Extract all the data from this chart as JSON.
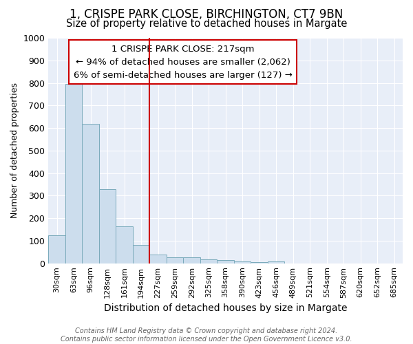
{
  "title": "1, CRISPE PARK CLOSE, BIRCHINGTON, CT7 9BN",
  "subtitle": "Size of property relative to detached houses in Margate",
  "xlabel": "Distribution of detached houses by size in Margate",
  "ylabel": "Number of detached properties",
  "footer_line1": "Contains HM Land Registry data © Crown copyright and database right 2024.",
  "footer_line2": "Contains public sector information licensed under the Open Government Licence v3.0.",
  "categories": [
    "30sqm",
    "63sqm",
    "96sqm",
    "128sqm",
    "161sqm",
    "194sqm",
    "227sqm",
    "259sqm",
    "292sqm",
    "325sqm",
    "358sqm",
    "390sqm",
    "423sqm",
    "456sqm",
    "489sqm",
    "521sqm",
    "554sqm",
    "587sqm",
    "620sqm",
    "652sqm",
    "685sqm"
  ],
  "values": [
    125,
    795,
    620,
    330,
    163,
    80,
    40,
    28,
    25,
    18,
    13,
    8,
    5,
    8,
    0,
    0,
    0,
    0,
    0,
    0,
    0
  ],
  "bar_color": "#ccdded",
  "bar_edge_color": "#7aaabb",
  "property_line_index": 6,
  "property_line_color": "#cc0000",
  "annotation_line1": "1 CRISPE PARK CLOSE: 217sqm",
  "annotation_line2": "← 94% of detached houses are smaller (2,062)",
  "annotation_line3": "6% of semi-detached houses are larger (127) →",
  "annotation_box_color": "#ffffff",
  "annotation_box_edge_color": "#cc0000",
  "ylim": [
    0,
    1000
  ],
  "yticks": [
    0,
    100,
    200,
    300,
    400,
    500,
    600,
    700,
    800,
    900,
    1000
  ],
  "background_color": "#ffffff",
  "plot_bg_color": "#e8eef8",
  "grid_color": "#ffffff",
  "title_fontsize": 12,
  "subtitle_fontsize": 10.5,
  "xlabel_fontsize": 10,
  "ylabel_fontsize": 9,
  "tick_fontsize": 8,
  "annotation_fontsize": 9.5
}
